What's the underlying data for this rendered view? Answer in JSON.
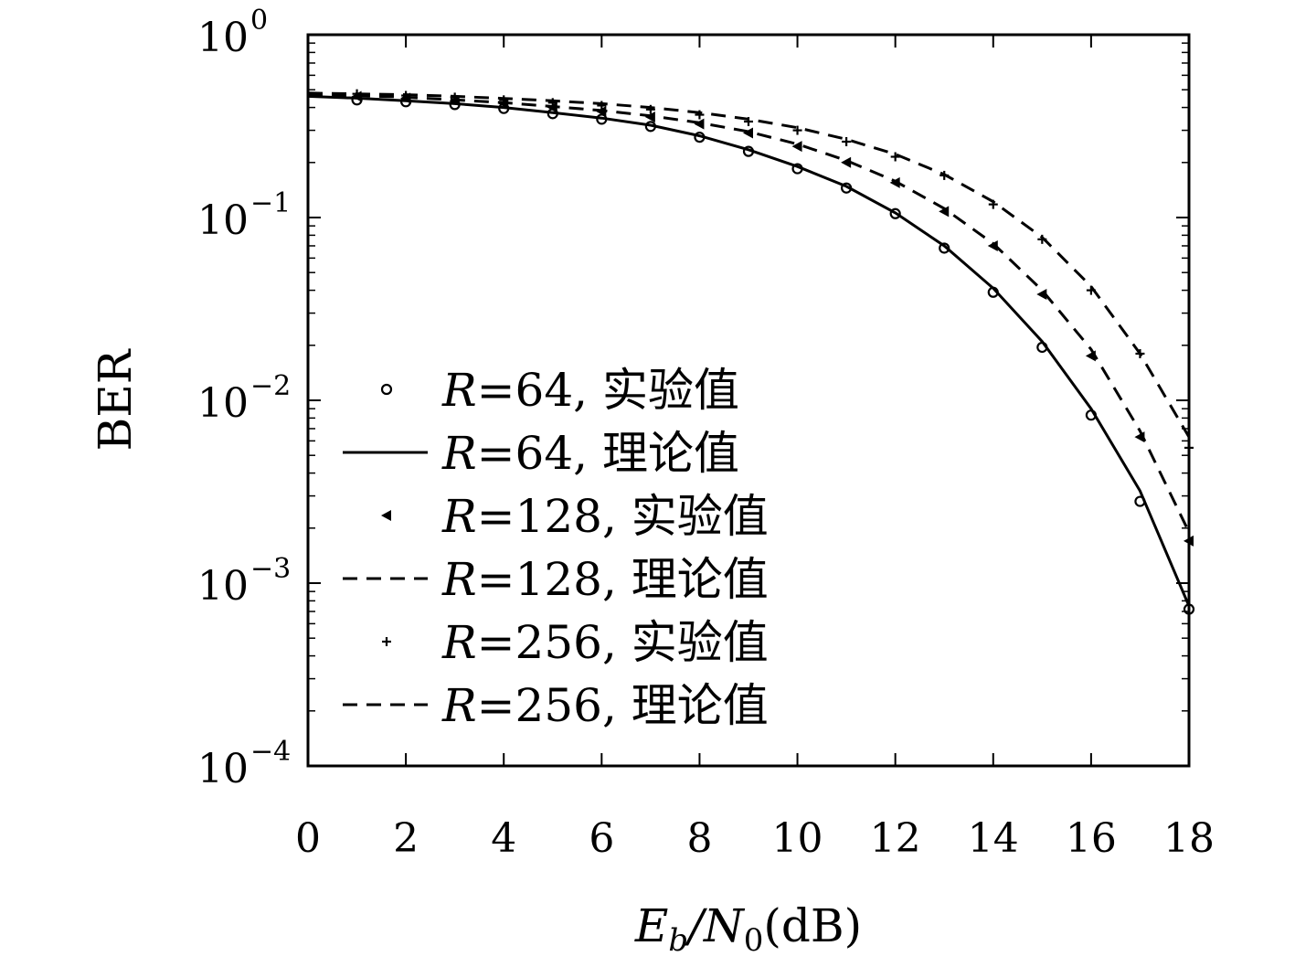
{
  "chart_data": {
    "type": "line",
    "xlabel": {
      "main": "E",
      "sub1": "b",
      "mid": "/N",
      "sub2": "0",
      "unit": "(dB)"
    },
    "ylabel": "BER",
    "xlim": [
      0,
      18
    ],
    "ylim": [
      0.0001,
      1
    ],
    "yscale": "log",
    "xticks": [
      "0",
      "2",
      "4",
      "6",
      "8",
      "10",
      "12",
      "14",
      "16",
      "18"
    ],
    "yticks": [
      {
        "base": "10",
        "exp": "0"
      },
      {
        "base": "10",
        "exp": "−1"
      },
      {
        "base": "10",
        "exp": "−2"
      },
      {
        "base": "10",
        "exp": "−3"
      },
      {
        "base": "10",
        "exp": "−4"
      }
    ],
    "grid": false,
    "legend_position": "lower-left",
    "series": [
      {
        "name": "R=64, 实验值",
        "label_var": "R",
        "label_rest": "=64, 实验值",
        "style": "marker",
        "marker": "circle",
        "x": [
          1,
          2,
          3,
          4,
          5,
          6,
          7,
          8,
          9,
          10,
          11,
          12,
          13,
          14,
          15,
          16,
          17,
          18
        ],
        "y": [
          0.44,
          0.43,
          0.415,
          0.395,
          0.37,
          0.345,
          0.315,
          0.275,
          0.23,
          0.185,
          0.145,
          0.105,
          0.068,
          0.039,
          0.0195,
          0.0083,
          0.0028,
          0.00072
        ]
      },
      {
        "name": "R=64, 理论值",
        "label_var": "R",
        "label_rest": "=64, 理论值",
        "style": "solid",
        "x": [
          0,
          1,
          2,
          3,
          4,
          5,
          6,
          7,
          8,
          9,
          10,
          11,
          12,
          13,
          14,
          15,
          16,
          17,
          18
        ],
        "y": [
          0.46,
          0.45,
          0.435,
          0.42,
          0.4,
          0.375,
          0.35,
          0.32,
          0.28,
          0.235,
          0.19,
          0.148,
          0.106,
          0.07,
          0.041,
          0.021,
          0.009,
          0.0032,
          0.00075
        ]
      },
      {
        "name": "R=128, 实验值",
        "label_var": "R",
        "label_rest": "=128, 实验值",
        "style": "marker",
        "marker": "triangle-left",
        "x": [
          1,
          2,
          3,
          4,
          5,
          6,
          7,
          8,
          9,
          10,
          11,
          12,
          13,
          14,
          15,
          16,
          17,
          18
        ],
        "y": [
          0.46,
          0.45,
          0.435,
          0.42,
          0.4,
          0.38,
          0.355,
          0.325,
          0.29,
          0.245,
          0.2,
          0.155,
          0.108,
          0.07,
          0.038,
          0.0175,
          0.0063,
          0.0017
        ]
      },
      {
        "name": "R=128, 理论值",
        "label_var": "R",
        "label_rest": "=128, 理论值",
        "style": "dashed",
        "x": [
          0,
          1,
          2,
          3,
          4,
          5,
          6,
          7,
          8,
          9,
          10,
          11,
          12,
          13,
          14,
          15,
          16,
          17,
          18
        ],
        "y": [
          0.47,
          0.465,
          0.455,
          0.44,
          0.425,
          0.405,
          0.385,
          0.36,
          0.33,
          0.295,
          0.252,
          0.205,
          0.158,
          0.112,
          0.072,
          0.04,
          0.019,
          0.0068,
          0.0019
        ]
      },
      {
        "name": "R=256, 实验值",
        "label_var": "R",
        "label_rest": "=256, 实验值",
        "style": "marker",
        "marker": "plus",
        "x": [
          1,
          2,
          3,
          4,
          5,
          6,
          7,
          8,
          9,
          10,
          11,
          12,
          13,
          14,
          15,
          16,
          17,
          18
        ],
        "y": [
          0.475,
          0.465,
          0.455,
          0.44,
          0.425,
          0.41,
          0.39,
          0.365,
          0.335,
          0.3,
          0.26,
          0.215,
          0.17,
          0.118,
          0.076,
          0.04,
          0.018,
          0.0055
        ]
      },
      {
        "name": "R=256, 理论值",
        "label_var": "R",
        "label_rest": "=256, 理论值",
        "style": "dashed",
        "x": [
          0,
          1,
          2,
          3,
          4,
          5,
          6,
          7,
          8,
          9,
          10,
          11,
          12,
          13,
          14,
          15,
          16,
          17,
          18
        ],
        "y": [
          0.48,
          0.475,
          0.47,
          0.46,
          0.448,
          0.435,
          0.42,
          0.4,
          0.375,
          0.345,
          0.31,
          0.268,
          0.222,
          0.172,
          0.122,
          0.078,
          0.042,
          0.018,
          0.0063
        ]
      }
    ]
  }
}
